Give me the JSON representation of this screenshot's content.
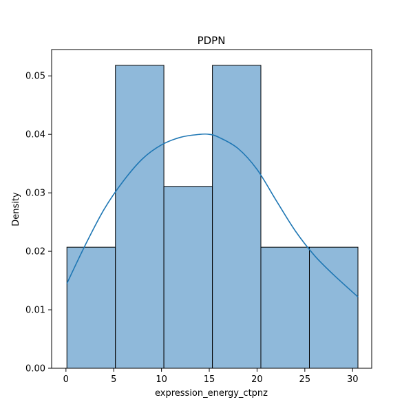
{
  "chart_data": {
    "type": "bar",
    "title": "PDPN",
    "xlabel": "expression_energy_ctpnz",
    "ylabel": "Density",
    "xlim": [
      -1.5,
      32.0
    ],
    "ylim": [
      0,
      0.0545
    ],
    "x_ticks": [
      0,
      5,
      10,
      15,
      20,
      25,
      30
    ],
    "x_tick_labels": [
      "0",
      "5",
      "10",
      "15",
      "20",
      "25",
      "30"
    ],
    "y_ticks": [
      0.0,
      0.01,
      0.02,
      0.03,
      0.04,
      0.05
    ],
    "y_tick_labels": [
      "0.00",
      "0.01",
      "0.02",
      "0.03",
      "0.04",
      "0.05"
    ],
    "bins": [
      {
        "x0": 0.1,
        "x1": 5.18,
        "value": 0.0207
      },
      {
        "x0": 5.18,
        "x1": 10.25,
        "value": 0.0518
      },
      {
        "x0": 10.25,
        "x1": 15.33,
        "value": 0.0311
      },
      {
        "x0": 15.33,
        "x1": 20.4,
        "value": 0.0518
      },
      {
        "x0": 20.4,
        "x1": 25.48,
        "value": 0.0207
      },
      {
        "x0": 25.48,
        "x1": 30.56,
        "value": 0.0207
      }
    ],
    "kde": {
      "x": [
        0.1,
        2,
        4,
        6,
        8,
        10,
        12,
        14,
        15,
        16,
        18,
        20,
        22,
        24,
        26,
        28,
        30.56
      ],
      "y": [
        0.0145,
        0.021,
        0.0272,
        0.032,
        0.0358,
        0.0382,
        0.0395,
        0.04,
        0.04,
        0.0395,
        0.0376,
        0.034,
        0.0287,
        0.0235,
        0.0193,
        0.016,
        0.0122
      ]
    },
    "grid": false,
    "colors": {
      "bar_fill": "#8fb9da",
      "bar_edge": "#000000",
      "kde_line": "#1f77b4"
    }
  }
}
